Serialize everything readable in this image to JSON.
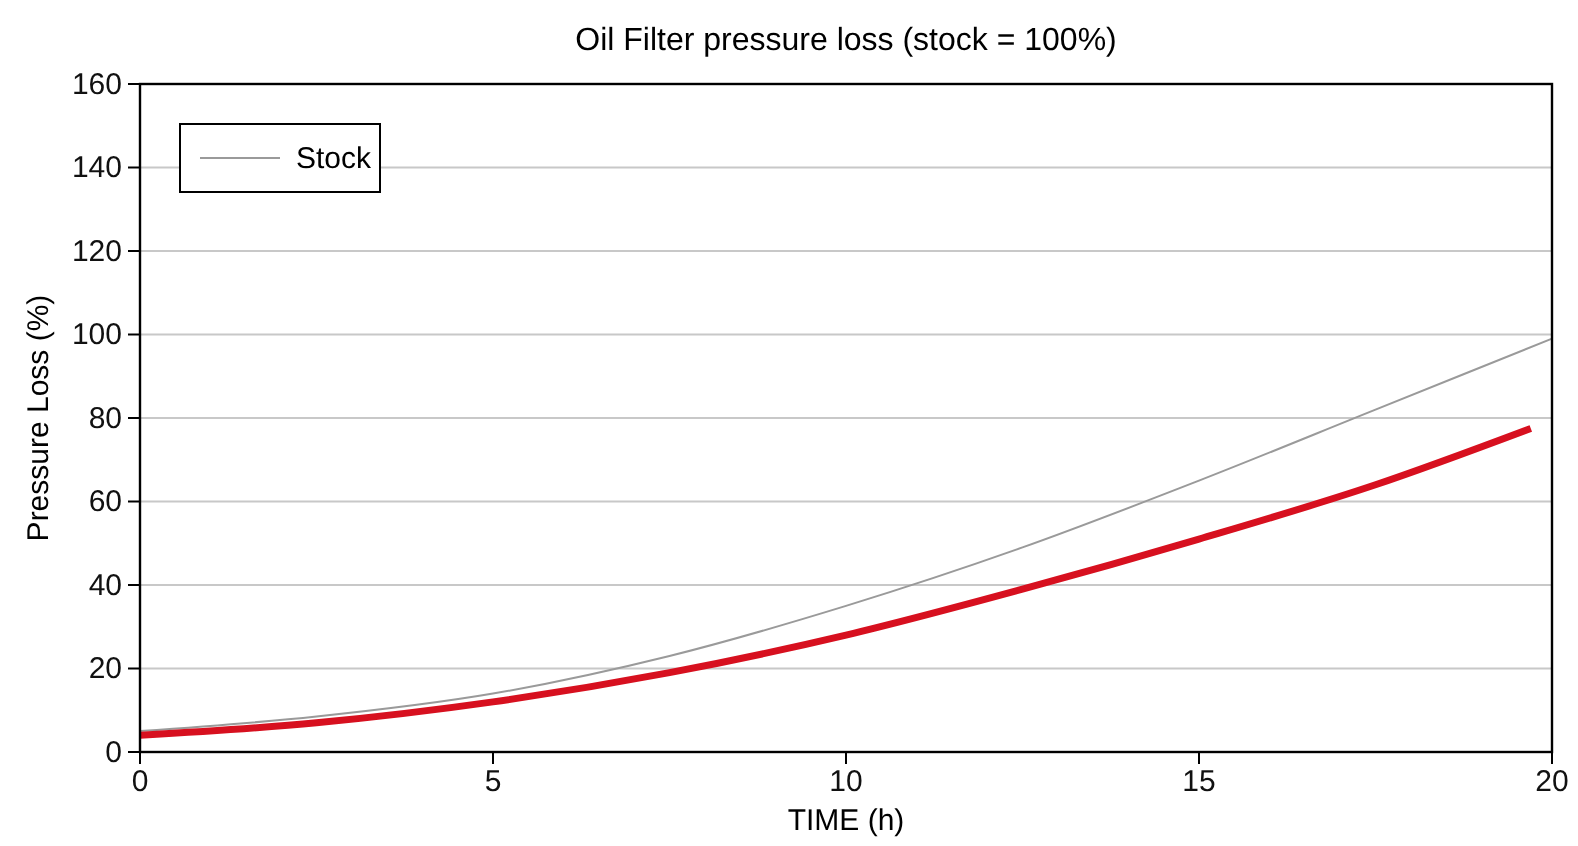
{
  "chart_data": {
    "type": "line",
    "title": "Oil Filter pressure loss  (stock = 100%)",
    "xlabel": "TIME (h)",
    "ylabel": "Pressure Loss (%)",
    "xlim": [
      0,
      20
    ],
    "xticks": [
      0,
      5,
      10,
      15,
      20
    ],
    "ylim": [
      0,
      160
    ],
    "yticks": [
      0,
      20,
      40,
      60,
      80,
      100,
      120,
      140,
      160
    ],
    "grid": "y",
    "legend": "top left",
    "line_style": "solid",
    "series": [
      {
        "color": "#d7101f",
        "x": [
          0,
          2.5,
          5,
          7.5,
          10,
          12.5,
          15,
          17.5,
          19.7
        ],
        "values": [
          4,
          7,
          12,
          19,
          28,
          39,
          51,
          64,
          77.5
        ]
      },
      {
        "name": "Stock",
        "color": "#9a9a9a",
        "x": [
          0,
          2.5,
          5,
          7.5,
          10,
          12.5,
          15,
          17.5,
          20
        ],
        "values": [
          5,
          8.5,
          14,
          23,
          35,
          49,
          65,
          82,
          99
        ]
      }
    ]
  }
}
